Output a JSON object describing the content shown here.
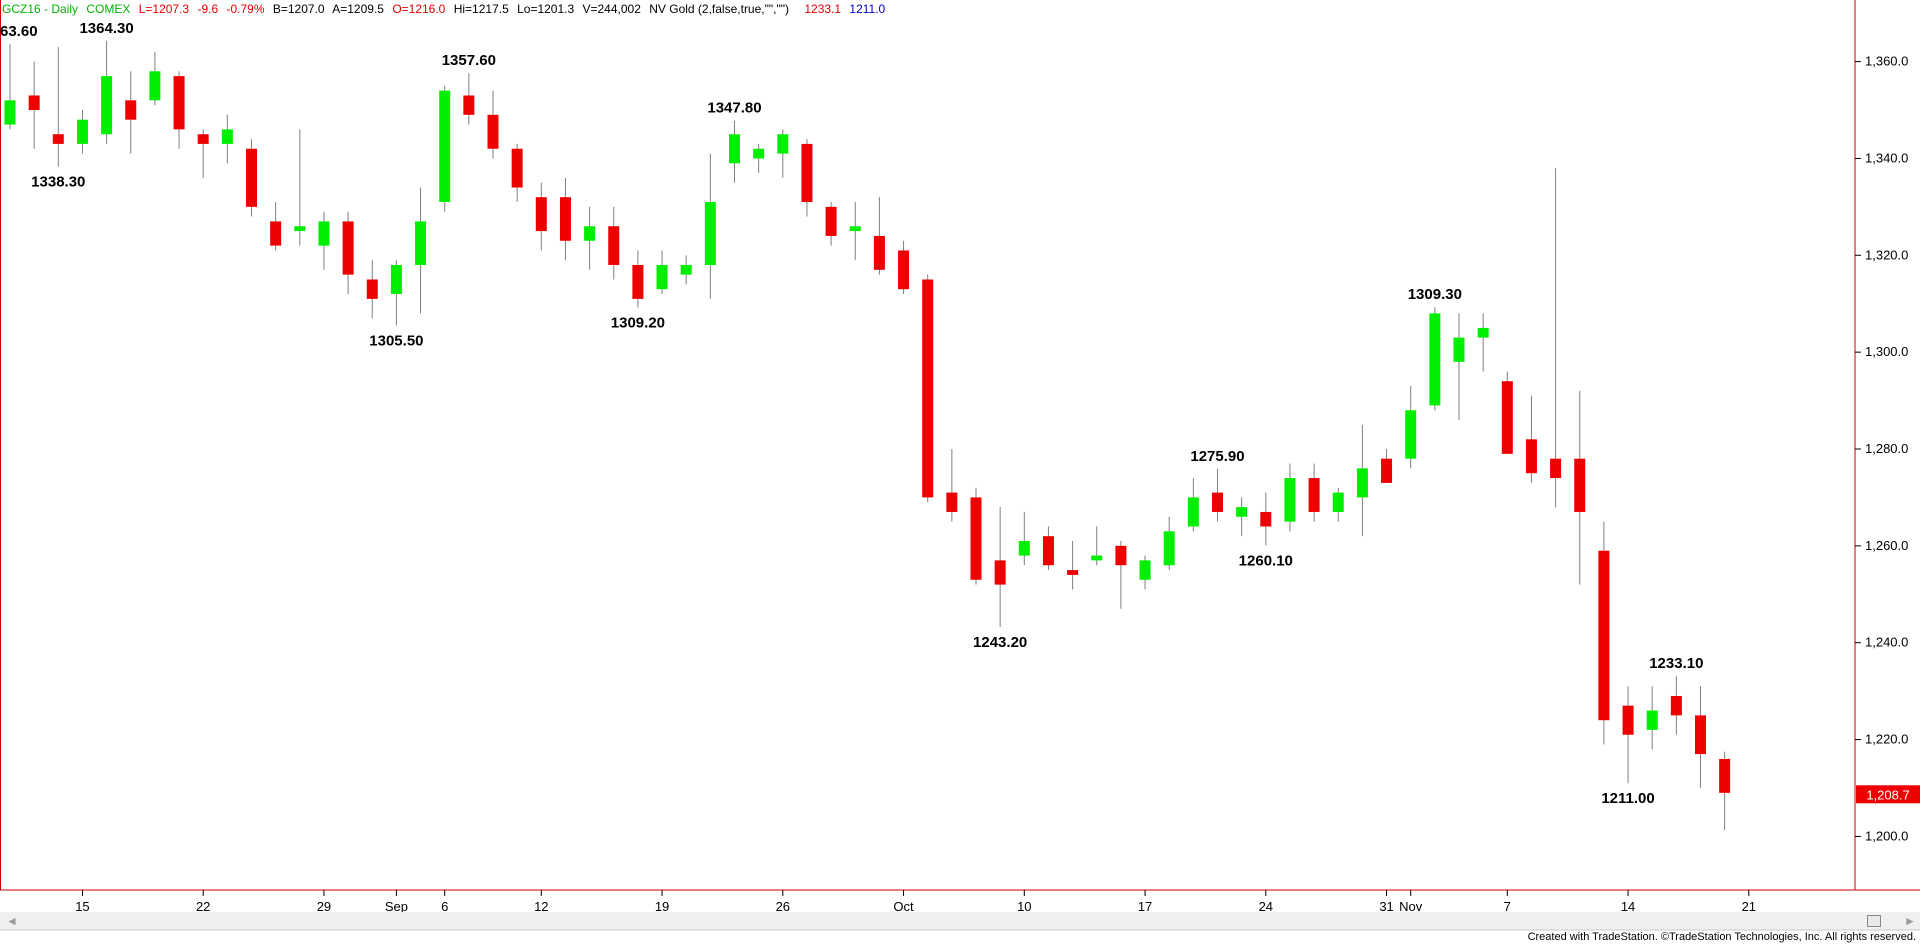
{
  "header": {
    "symbol": "GCZ16 - Daily",
    "exchange": "COMEX",
    "last": "L=1207.3",
    "change": "-9.6",
    "change_pct": "-0.79%",
    "bid": "B=1207.0",
    "ask": "A=1209.5",
    "open": "O=1216.0",
    "high": "Hi=1217.5",
    "low": "Lo=1201.3",
    "volume": "V=244,002",
    "study": "NV Gold (2,false,true,\"\",\"\")",
    "study_val1": "1233.1",
    "study_val2": "1211.0"
  },
  "price_marker": "1,208.7",
  "footer": "Created with TradeStation. ©TradeStation Technologies, Inc. All rights reserved.",
  "colors": {
    "up": "#00ee00",
    "down": "#ee0000",
    "wick": "#7f7f7f",
    "axis": "#cc0000",
    "marker_bg": "#ee0000"
  },
  "chart_data": {
    "type": "candlestick",
    "y_range": [
      1191,
      1369
    ],
    "y_ticks": [
      "1,200.0",
      "1,220.0",
      "1,240.0",
      "1,260.0",
      "1,280.0",
      "1,300.0",
      "1,320.0",
      "1,340.0",
      "1,360.0"
    ],
    "x_ticks": [
      {
        "label": "15",
        "index": 3
      },
      {
        "label": "22",
        "index": 8
      },
      {
        "label": "29",
        "index": 13
      },
      {
        "label": "Sep",
        "index": 16
      },
      {
        "label": "6",
        "index": 18
      },
      {
        "label": "12",
        "index": 22
      },
      {
        "label": "19",
        "index": 27
      },
      {
        "label": "26",
        "index": 32
      },
      {
        "label": "Oct",
        "index": 37
      },
      {
        "label": "10",
        "index": 42
      },
      {
        "label": "17",
        "index": 47
      },
      {
        "label": "24",
        "index": 52
      },
      {
        "label": "31",
        "index": 57
      },
      {
        "label": "Nov",
        "index": 58
      },
      {
        "label": "7",
        "index": 62
      },
      {
        "label": "14",
        "index": 67
      },
      {
        "label": "21",
        "index": 72
      }
    ],
    "candles": [
      {
        "o": 1347,
        "h": 1363.6,
        "l": 1346,
        "c": 1352
      },
      {
        "o": 1353,
        "h": 1360,
        "l": 1342,
        "c": 1350
      },
      {
        "o": 1345,
        "h": 1363,
        "l": 1338.3,
        "c": 1343
      },
      {
        "o": 1343,
        "h": 1350,
        "l": 1341,
        "c": 1348
      },
      {
        "o": 1345,
        "h": 1364.3,
        "l": 1343,
        "c": 1357
      },
      {
        "o": 1352,
        "h": 1358,
        "l": 1341,
        "c": 1348
      },
      {
        "o": 1352,
        "h": 1362,
        "l": 1351,
        "c": 1358
      },
      {
        "o": 1357,
        "h": 1358,
        "l": 1342,
        "c": 1346
      },
      {
        "o": 1345,
        "h": 1346,
        "l": 1336,
        "c": 1343
      },
      {
        "o": 1343,
        "h": 1349,
        "l": 1339,
        "c": 1346
      },
      {
        "o": 1342,
        "h": 1344,
        "l": 1328,
        "c": 1330
      },
      {
        "o": 1327,
        "h": 1331,
        "l": 1321,
        "c": 1322
      },
      {
        "o": 1325,
        "h": 1346,
        "l": 1322,
        "c": 1326
      },
      {
        "o": 1322,
        "h": 1329,
        "l": 1317,
        "c": 1327
      },
      {
        "o": 1327,
        "h": 1329,
        "l": 1312,
        "c": 1316
      },
      {
        "o": 1315,
        "h": 1319,
        "l": 1307,
        "c": 1311
      },
      {
        "o": 1312,
        "h": 1319,
        "l": 1305.5,
        "c": 1318
      },
      {
        "o": 1318,
        "h": 1334,
        "l": 1308,
        "c": 1327
      },
      {
        "o": 1331,
        "h": 1355,
        "l": 1329,
        "c": 1354
      },
      {
        "o": 1353,
        "h": 1357.6,
        "l": 1347,
        "c": 1349
      },
      {
        "o": 1349,
        "h": 1354,
        "l": 1340,
        "c": 1342
      },
      {
        "o": 1342,
        "h": 1343,
        "l": 1331,
        "c": 1334
      },
      {
        "o": 1332,
        "h": 1335,
        "l": 1321,
        "c": 1325
      },
      {
        "o": 1332,
        "h": 1336,
        "l": 1319,
        "c": 1323
      },
      {
        "o": 1323,
        "h": 1330,
        "l": 1317,
        "c": 1326
      },
      {
        "o": 1326,
        "h": 1330,
        "l": 1315,
        "c": 1318
      },
      {
        "o": 1318,
        "h": 1321,
        "l": 1309.2,
        "c": 1311
      },
      {
        "o": 1313,
        "h": 1321,
        "l": 1312,
        "c": 1318
      },
      {
        "o": 1316,
        "h": 1320,
        "l": 1314,
        "c": 1318
      },
      {
        "o": 1318,
        "h": 1341,
        "l": 1311,
        "c": 1331
      },
      {
        "o": 1339,
        "h": 1347.8,
        "l": 1335,
        "c": 1345
      },
      {
        "o": 1340,
        "h": 1343,
        "l": 1337,
        "c": 1342
      },
      {
        "o": 1341,
        "h": 1346,
        "l": 1336,
        "c": 1345
      },
      {
        "o": 1343,
        "h": 1344,
        "l": 1328,
        "c": 1331
      },
      {
        "o": 1330,
        "h": 1331,
        "l": 1322,
        "c": 1324
      },
      {
        "o": 1325,
        "h": 1331,
        "l": 1319,
        "c": 1326
      },
      {
        "o": 1324,
        "h": 1332,
        "l": 1316,
        "c": 1317
      },
      {
        "o": 1321,
        "h": 1323,
        "l": 1312,
        "c": 1313
      },
      {
        "o": 1315,
        "h": 1316,
        "l": 1269,
        "c": 1270
      },
      {
        "o": 1271,
        "h": 1280,
        "l": 1265,
        "c": 1267
      },
      {
        "o": 1270,
        "h": 1272,
        "l": 1252,
        "c": 1253
      },
      {
        "o": 1257,
        "h": 1268,
        "l": 1243.2,
        "c": 1252
      },
      {
        "o": 1258,
        "h": 1267,
        "l": 1256,
        "c": 1261
      },
      {
        "o": 1262,
        "h": 1264,
        "l": 1255,
        "c": 1256
      },
      {
        "o": 1255,
        "h": 1261,
        "l": 1251,
        "c": 1254
      },
      {
        "o": 1257,
        "h": 1264,
        "l": 1256,
        "c": 1258
      },
      {
        "o": 1260,
        "h": 1261,
        "l": 1247,
        "c": 1256
      },
      {
        "o": 1253,
        "h": 1258,
        "l": 1251,
        "c": 1257
      },
      {
        "o": 1256,
        "h": 1266,
        "l": 1255,
        "c": 1263
      },
      {
        "o": 1264,
        "h": 1274,
        "l": 1263,
        "c": 1270
      },
      {
        "o": 1271,
        "h": 1275.9,
        "l": 1265,
        "c": 1267
      },
      {
        "o": 1266,
        "h": 1270,
        "l": 1262,
        "c": 1268
      },
      {
        "o": 1267,
        "h": 1271,
        "l": 1260.1,
        "c": 1264
      },
      {
        "o": 1265,
        "h": 1277,
        "l": 1263,
        "c": 1274
      },
      {
        "o": 1274,
        "h": 1277,
        "l": 1265,
        "c": 1267
      },
      {
        "o": 1267,
        "h": 1272,
        "l": 1265,
        "c": 1271
      },
      {
        "o": 1270,
        "h": 1285,
        "l": 1262,
        "c": 1276
      },
      {
        "o": 1278,
        "h": 1280,
        "l": 1273,
        "c": 1273
      },
      {
        "o": 1278,
        "h": 1293,
        "l": 1276,
        "c": 1288
      },
      {
        "o": 1289,
        "h": 1309.3,
        "l": 1288,
        "c": 1308
      },
      {
        "o": 1298,
        "h": 1308,
        "l": 1286,
        "c": 1303
      },
      {
        "o": 1303,
        "h": 1308,
        "l": 1296,
        "c": 1305
      },
      {
        "o": 1294,
        "h": 1296,
        "l": 1279,
        "c": 1279
      },
      {
        "o": 1282,
        "h": 1291,
        "l": 1273,
        "c": 1275
      },
      {
        "o": 1278,
        "h": 1338,
        "l": 1268,
        "c": 1274
      },
      {
        "o": 1278,
        "h": 1292,
        "l": 1252,
        "c": 1267
      },
      {
        "o": 1259,
        "h": 1265,
        "l": 1219,
        "c": 1224
      },
      {
        "o": 1227,
        "h": 1231,
        "l": 1211,
        "c": 1221
      },
      {
        "o": 1222,
        "h": 1231,
        "l": 1218,
        "c": 1226
      },
      {
        "o": 1229,
        "h": 1233.1,
        "l": 1221,
        "c": 1225
      },
      {
        "o": 1225,
        "h": 1231,
        "l": 1210,
        "c": 1217
      },
      {
        "o": 1216,
        "h": 1217.5,
        "l": 1201.3,
        "c": 1209
      }
    ],
    "annotations": [
      {
        "text": "63.60",
        "index": 0,
        "pos": "above"
      },
      {
        "text": "1364.30",
        "index": 4,
        "pos": "above"
      },
      {
        "text": "1338.30",
        "index": 2,
        "pos": "below"
      },
      {
        "text": "1357.60",
        "index": 19,
        "pos": "above"
      },
      {
        "text": "1305.50",
        "index": 16,
        "pos": "below"
      },
      {
        "text": "1347.80",
        "index": 30,
        "pos": "above"
      },
      {
        "text": "1309.20",
        "index": 26,
        "pos": "below"
      },
      {
        "text": "1243.20",
        "index": 41,
        "pos": "below"
      },
      {
        "text": "1275.90",
        "index": 50,
        "pos": "above"
      },
      {
        "text": "1260.10",
        "index": 52,
        "pos": "below"
      },
      {
        "text": "1309.30",
        "index": 59,
        "pos": "above"
      },
      {
        "text": "1233.10",
        "index": 69,
        "pos": "above"
      },
      {
        "text": "1211.00",
        "index": 67,
        "pos": "below"
      }
    ]
  }
}
